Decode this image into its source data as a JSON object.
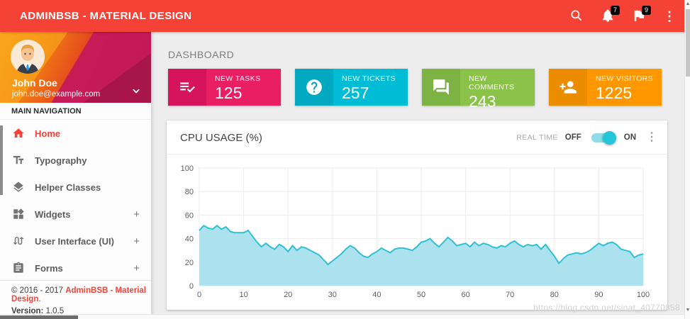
{
  "header": {
    "title": "ADMINBSB - MATERIAL DESIGN",
    "bell_badge": "7",
    "flag_badge": "9",
    "bar_color": "#F44336"
  },
  "user": {
    "name": "John Doe",
    "email": "john.doe@example.com"
  },
  "sidebar": {
    "section_label": "MAIN NAVIGATION",
    "items": [
      {
        "label": "Home",
        "icon": "home-icon",
        "active": true
      },
      {
        "label": "Typography",
        "icon": "typography-icon"
      },
      {
        "label": "Helper Classes",
        "icon": "layers-icon"
      },
      {
        "label": "Widgets",
        "icon": "widgets-icon",
        "expand": "+"
      },
      {
        "label": "User Interface (UI)",
        "icon": "swap-calls-icon",
        "expand": "+"
      },
      {
        "label": "Forms",
        "icon": "assignment-icon",
        "expand": "+"
      }
    ],
    "footer": {
      "copyright_prefix": "© 2016 - 2017 ",
      "brand": "AdminBSB - Material Design",
      "suffix": ".",
      "version_label": "Version:",
      "version": " 1.0.5"
    }
  },
  "main": {
    "page_title": "DASHBOARD",
    "info_boxes": [
      {
        "label": "NEW TASKS",
        "value": "125",
        "color": "#E91E63",
        "icon_color": "#D6145B",
        "icon": "playlist-check-icon"
      },
      {
        "label": "NEW TICKETS",
        "value": "257",
        "color": "#00BCD4",
        "icon_color": "#00A9C0",
        "icon": "help-icon"
      },
      {
        "label": "NEW COMMENTS",
        "value": "243",
        "color": "#8BC34A",
        "icon_color": "#7CB342",
        "icon": "forum-icon"
      },
      {
        "label": "NEW VISITORS",
        "value": "1225",
        "color": "#FF9800",
        "icon_color": "#EC8C00",
        "icon": "person-add-icon"
      }
    ],
    "cpu_card": {
      "title": "CPU USAGE (%)",
      "realtime_label": "REAL TIME",
      "off_label": "OFF",
      "on_label": "ON",
      "toggle_state": "on",
      "toggle_color": "#26C6DA",
      "toggle_track_color": "#8edce7"
    }
  },
  "watermark": "https://blog.csdn.net/sinat_40770858",
  "chart_data": {
    "type": "area",
    "title": "CPU USAGE (%)",
    "xlabel": "",
    "ylabel": "",
    "xlim": [
      0,
      100
    ],
    "ylim": [
      0,
      100
    ],
    "x_ticks": [
      0,
      10,
      20,
      30,
      40,
      50,
      60,
      70,
      80,
      90,
      100
    ],
    "y_ticks": [
      0,
      20,
      40,
      60,
      80,
      100
    ],
    "grid": true,
    "legend": "none",
    "line_color": "#2FC0D4",
    "fill_color": "#ACE2EE",
    "x_start": 0,
    "x_step": 1,
    "values": [
      47,
      51,
      49,
      48,
      51,
      48,
      50,
      46,
      45,
      45,
      45,
      47,
      42,
      37,
      33,
      36,
      33,
      31,
      35,
      33,
      29,
      34,
      30,
      33,
      32,
      30,
      28,
      26,
      22,
      18,
      21,
      24,
      27,
      31,
      34,
      32,
      28,
      25,
      24,
      27,
      29,
      32,
      30,
      28,
      31,
      32,
      32,
      31,
      30,
      33,
      37,
      38,
      40,
      36,
      33,
      37,
      41,
      38,
      34,
      35,
      36,
      33,
      37,
      34,
      36,
      35,
      33,
      32,
      34,
      33,
      36,
      38,
      35,
      33,
      35,
      34,
      35,
      31,
      35,
      30,
      25,
      19,
      23,
      26,
      27,
      28,
      27,
      28,
      30,
      33,
      36,
      34,
      36,
      37,
      35,
      31,
      30,
      29,
      24,
      26,
      27
    ]
  }
}
